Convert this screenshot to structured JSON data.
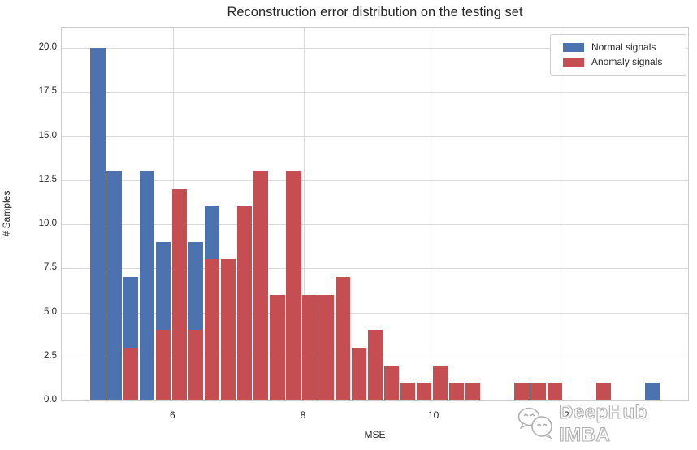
{
  "watermark": {
    "text": "DeepHub IMBA",
    "icon": "wechat-bubbles-icon"
  },
  "colors": {
    "normal": "#4C72B0",
    "anomaly": "#C44E52",
    "grid": "#D9D9D9",
    "spine": "#CCCCCC",
    "text": "#262626",
    "watermark": "#ABABAB"
  },
  "chart_data": {
    "type": "bar",
    "subtype": "overlapping-histogram",
    "title": "Reconstruction error distribution on the testing set",
    "xlabel": "MSE",
    "ylabel": "# Samples",
    "grid": true,
    "legend_position": "upper right",
    "legend": {
      "entries": [
        {
          "label": "Normal signals",
          "color": "#4C72B0"
        },
        {
          "label": "Anomaly signals",
          "color": "#C44E52"
        }
      ]
    },
    "xlim": [
      4.29,
      13.89
    ],
    "ylim": [
      0,
      21.15
    ],
    "xticks": [
      {
        "value": 6,
        "label": "6"
      },
      {
        "value": 8,
        "label": "8"
      },
      {
        "value": 10,
        "label": "10"
      },
      {
        "value": 12,
        "label": "12"
      }
    ],
    "yticks": [
      {
        "value": 0,
        "label": "0.0"
      },
      {
        "value": 2.5,
        "label": "2.5"
      },
      {
        "value": 5,
        "label": "5.0"
      },
      {
        "value": 7.5,
        "label": "7.5"
      },
      {
        "value": 10,
        "label": "10.0"
      },
      {
        "value": 12.5,
        "label": "12.5"
      },
      {
        "value": 15,
        "label": "15.0"
      },
      {
        "value": 17.5,
        "label": "17.5"
      },
      {
        "value": 20,
        "label": "20.0"
      }
    ],
    "first_bin_left_mse": 4.72,
    "bin_width_mse": 0.25,
    "series": [
      {
        "name": "Normal signals",
        "color": "#4C72B0",
        "values": [
          20,
          13,
          7,
          13,
          9,
          0,
          9,
          11,
          0,
          0,
          0,
          0,
          0,
          0,
          0,
          0,
          0,
          0,
          0,
          0,
          0,
          0,
          0,
          0,
          0,
          0,
          0,
          0,
          0,
          0,
          0,
          0,
          0,
          0,
          1
        ]
      },
      {
        "name": "Anomaly signals",
        "color": "#C44E52",
        "values": [
          0,
          0,
          3,
          0,
          4,
          12,
          4,
          8,
          8,
          11,
          13,
          6,
          13,
          6,
          6,
          7,
          3,
          4,
          2,
          1,
          1,
          2,
          1,
          1,
          0,
          0,
          1,
          1,
          1,
          0,
          0,
          1,
          0,
          0,
          0
        ]
      }
    ]
  }
}
